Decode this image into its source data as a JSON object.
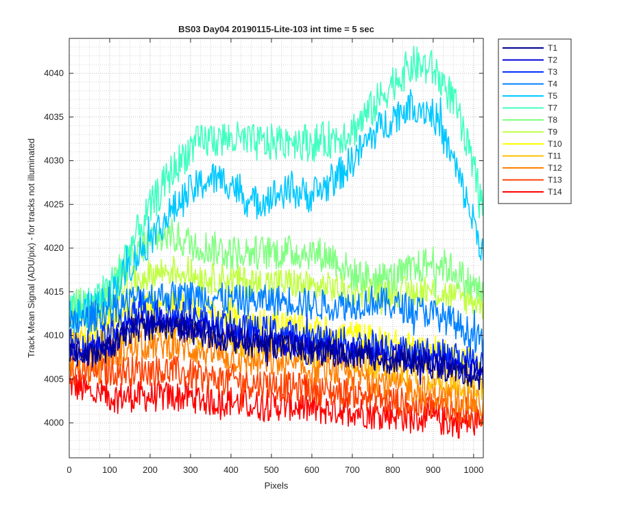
{
  "chart_data": {
    "type": "line",
    "title": "BS03 Day04 20190115-Lite-103 int time = 5 sec",
    "xlabel": "Pixels",
    "ylabel": "Track Mean Signal (ADU/pix) - for tracks not illuminated",
    "xlim": [
      0,
      1024
    ],
    "ylim": [
      3996,
      4044
    ],
    "xticks": [
      0,
      100,
      200,
      300,
      400,
      500,
      600,
      700,
      800,
      900,
      1000
    ],
    "yticks": [
      4000,
      4005,
      4010,
      4015,
      4020,
      4025,
      4030,
      4035,
      4040
    ],
    "grid": true,
    "minor_grid": true,
    "legend_placement": "outside-right",
    "noise_note": "traces are noisy; values below are smoothed centerlines read at 50-pixel steps, noise amplitude approx +/-2 ADU",
    "x": [
      0,
      50,
      100,
      150,
      200,
      250,
      300,
      350,
      400,
      450,
      500,
      550,
      600,
      650,
      700,
      750,
      800,
      850,
      900,
      950,
      1000,
      1024
    ],
    "series": [
      {
        "name": "T1",
        "color": "#00008F",
        "values": [
          4008.0,
          4007.5,
          4008.5,
          4010.5,
          4011.0,
          4011.0,
          4010.5,
          4010.0,
          4009.5,
          4009.0,
          4009.0,
          4008.5,
          4008.0,
          4008.0,
          4007.5,
          4007.5,
          4007.0,
          4007.0,
          4006.5,
          4006.0,
          4005.5,
          4005.0
        ]
      },
      {
        "name": "T2",
        "color": "#0000D8",
        "values": [
          4008.5,
          4008.0,
          4009.0,
          4011.0,
          4011.5,
          4011.5,
          4011.0,
          4010.5,
          4010.0,
          4009.5,
          4009.5,
          4009.0,
          4008.5,
          4008.5,
          4008.0,
          4008.0,
          4007.5,
          4007.5,
          4007.0,
          4006.5,
          4006.0,
          4005.5
        ]
      },
      {
        "name": "T3",
        "color": "#0030FF",
        "values": [
          4009.0,
          4009.0,
          4010.0,
          4012.0,
          4012.5,
          4012.5,
          4012.0,
          4011.5,
          4011.0,
          4010.5,
          4010.5,
          4010.0,
          4009.5,
          4009.5,
          4009.0,
          4009.0,
          4008.5,
          4008.0,
          4008.0,
          4007.5,
          4007.0,
          4006.5
        ]
      },
      {
        "name": "T4",
        "color": "#0080FF",
        "values": [
          4011.0,
          4012.0,
          4013.0,
          4014.0,
          4014.5,
          4014.5,
          4014.5,
          4014.5,
          4014.0,
          4014.0,
          4014.0,
          4014.0,
          4013.5,
          4013.5,
          4013.5,
          4014.0,
          4013.5,
          4013.0,
          4012.5,
          4011.5,
          4010.0,
          4009.0
        ]
      },
      {
        "name": "T5",
        "color": "#00C8FF",
        "values": [
          4012.0,
          4013.0,
          4014.5,
          4018.0,
          4021.0,
          4024.0,
          4026.5,
          4028.0,
          4027.5,
          4025.0,
          4026.0,
          4026.5,
          4026.0,
          4027.5,
          4030.0,
          4033.0,
          4035.0,
          4036.5,
          4035.5,
          4030.0,
          4023.0,
          4019.5
        ]
      },
      {
        "name": "T7",
        "color": "#40FFC0",
        "values": [
          4013.0,
          4013.5,
          4015.5,
          4020.0,
          4024.5,
          4028.5,
          4031.5,
          4032.5,
          4032.5,
          4032.0,
          4032.0,
          4032.5,
          4032.0,
          4032.5,
          4033.5,
          4036.0,
          4039.0,
          4041.0,
          4040.5,
          4037.0,
          4029.0,
          4025.0
        ]
      },
      {
        "name": "T8",
        "color": "#80FF80",
        "values": [
          4013.5,
          4013.5,
          4015.0,
          4018.5,
          4021.0,
          4021.5,
          4020.5,
          4020.0,
          4019.5,
          4019.5,
          4019.5,
          4019.5,
          4019.5,
          4019.0,
          4017.0,
          4016.5,
          4016.5,
          4017.5,
          4018.5,
          4017.5,
          4015.5,
          4015.0
        ]
      },
      {
        "name": "T9",
        "color": "#C0FF40",
        "values": [
          4012.5,
          4013.0,
          4014.0,
          4016.0,
          4017.0,
          4017.5,
          4017.0,
          4016.5,
          4016.5,
          4016.0,
          4016.0,
          4016.0,
          4015.5,
          4015.5,
          4015.0,
          4015.0,
          4015.0,
          4015.0,
          4015.0,
          4014.5,
          4014.0,
          4013.5
        ]
      },
      {
        "name": "T10",
        "color": "#FFFF00",
        "values": [
          4011.0,
          4011.0,
          4012.0,
          4013.0,
          4013.5,
          4013.5,
          4013.0,
          4012.5,
          4012.0,
          4011.5,
          4011.5,
          4011.0,
          4010.5,
          4010.0,
          4010.0,
          4009.5,
          4009.0,
          4008.5,
          4008.0,
          4007.5,
          4007.0,
          4006.5
        ]
      },
      {
        "name": "T11",
        "color": "#FFC000",
        "values": [
          4009.0,
          4009.0,
          4009.5,
          4010.5,
          4011.0,
          4011.0,
          4010.5,
          4010.0,
          4009.5,
          4009.0,
          4009.0,
          4008.5,
          4008.0,
          4008.0,
          4007.5,
          4007.0,
          4006.5,
          4006.0,
          4005.5,
          4005.0,
          4004.5,
          4004.0
        ]
      },
      {
        "name": "T12",
        "color": "#FF8000",
        "values": [
          4007.5,
          4007.5,
          4008.0,
          4008.5,
          4009.0,
          4009.0,
          4008.5,
          4008.0,
          4007.5,
          4007.0,
          4007.0,
          4006.5,
          4006.0,
          4006.0,
          4005.5,
          4005.0,
          4004.5,
          4004.0,
          4003.5,
          4003.0,
          4002.5,
          4002.0
        ]
      },
      {
        "name": "T13",
        "color": "#FF4000",
        "values": [
          4006.0,
          4005.5,
          4006.0,
          4006.0,
          4006.0,
          4006.0,
          4005.5,
          4005.0,
          4005.0,
          4004.5,
          4004.5,
          4004.0,
          4004.0,
          4003.5,
          4003.5,
          4003.0,
          4002.5,
          4002.0,
          4002.0,
          4001.5,
          4001.0,
          4001.0
        ]
      },
      {
        "name": "T14",
        "color": "#FF0000",
        "values": [
          4004.5,
          4003.5,
          4003.0,
          4003.0,
          4003.0,
          4003.0,
          4003.0,
          4002.5,
          4002.5,
          4002.0,
          4002.0,
          4002.0,
          4001.5,
          4001.5,
          4001.5,
          4001.0,
          4001.0,
          4000.5,
          4000.5,
          4000.0,
          4000.0,
          4000.0
        ]
      }
    ]
  }
}
